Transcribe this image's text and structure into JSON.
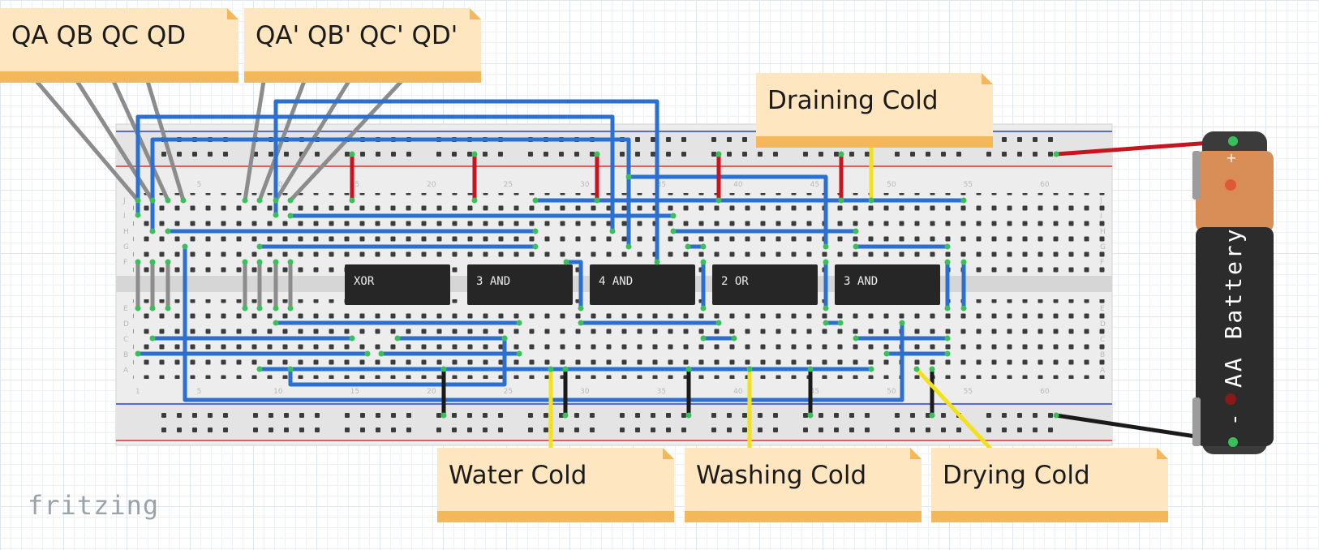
{
  "notes": {
    "q": "QA QB QC QD",
    "q_not": "QA' QB' QC' QD'",
    "draining": "Draining Cold",
    "water": "Water Cold",
    "washing": "Washing Cold",
    "drying": "Drying Cold"
  },
  "chips": {
    "c1": "XOR",
    "c2": "3 AND",
    "c3": "4 AND",
    "c4": "2 OR",
    "c5": "3 AND"
  },
  "breadboard": {
    "row_labels_top": [
      "J",
      "I",
      "H",
      "G",
      "F"
    ],
    "row_labels_bottom": [
      "E",
      "D",
      "C",
      "B",
      "A"
    ],
    "col_numbers": [
      "1",
      "5",
      "10",
      "15",
      "20",
      "25",
      "30",
      "35",
      "40",
      "45",
      "50",
      "55",
      "60"
    ]
  },
  "battery": {
    "label": "AA Battery",
    "plus": "+",
    "minus": "-"
  },
  "logo": "fritzing",
  "colors": {
    "wire_blue": "#2b6fd1",
    "wire_red": "#c8141e",
    "wire_black": "#1a1a1a",
    "wire_yellow": "#f2e21b",
    "wire_gray": "#8c8c8c",
    "note_fill": "#fde6c0",
    "note_band": "#f4b85a",
    "hole_green": "#39c05a"
  }
}
